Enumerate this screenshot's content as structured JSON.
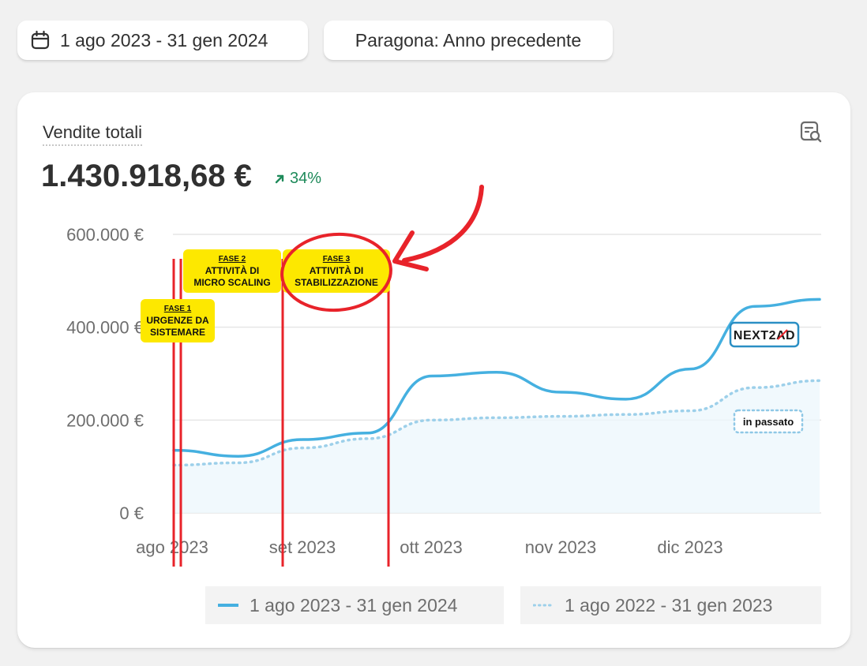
{
  "toolbar": {
    "date_range": "1 ago 2023 - 31 gen 2024",
    "compare": "Paragona: Anno precedente",
    "calendar_icon": "calendar-icon"
  },
  "metric": {
    "title": "Vendite totali",
    "value": "1.430.918,68 €",
    "change": "34%",
    "change_icon": "arrow-up-right-icon",
    "report_icon": "report-search-icon"
  },
  "colors": {
    "current": "#45b0e0",
    "previous": "#9dd0ea",
    "annotation_red": "#e8232a",
    "label_yellow": "#fde800",
    "trend_green": "#1e8a5a"
  },
  "chart_data": {
    "type": "line",
    "y_ticks": [
      "600.000 €",
      "400.000 €",
      "200.000 €",
      "0 €"
    ],
    "y_tick_values": [
      600000,
      400000,
      200000,
      0
    ],
    "ylim": [
      0,
      600000
    ],
    "x_ticks": [
      "ago 2023",
      "set 2023",
      "ott 2023",
      "nov 2023",
      "dic 2023"
    ],
    "grid": true,
    "series": [
      {
        "name": "1 ago 2023 - 31 gen 2024",
        "style": "solid",
        "values": [
          135000,
          122000,
          158000,
          172000,
          295000,
          303000,
          260000,
          245000,
          310000,
          445000,
          460000
        ]
      },
      {
        "name": "1 ago 2022 - 31 gen 2023",
        "style": "dotted",
        "values": [
          103000,
          108000,
          140000,
          160000,
          200000,
          205000,
          208000,
          212000,
          220000,
          270000,
          285000
        ]
      }
    ]
  },
  "annotations": {
    "phase1": {
      "title": "FASE 1",
      "line1": "URGENZE DA",
      "line2": "SISTEMARE"
    },
    "phase2": {
      "title": "FASE 2",
      "line1": "ATTIVITÀ DI",
      "line2": "MICRO SCALING"
    },
    "phase3": {
      "title": "FASE 3",
      "line1": "ATTIVITÀ DI",
      "line2": "STABILIZZAZIONE"
    },
    "brand": "NEXT2AD",
    "past_label": "in passato"
  },
  "legend": {
    "current": "1 ago 2023 - 31 gen 2024",
    "previous": "1 ago 2022 - 31 gen 2023"
  }
}
